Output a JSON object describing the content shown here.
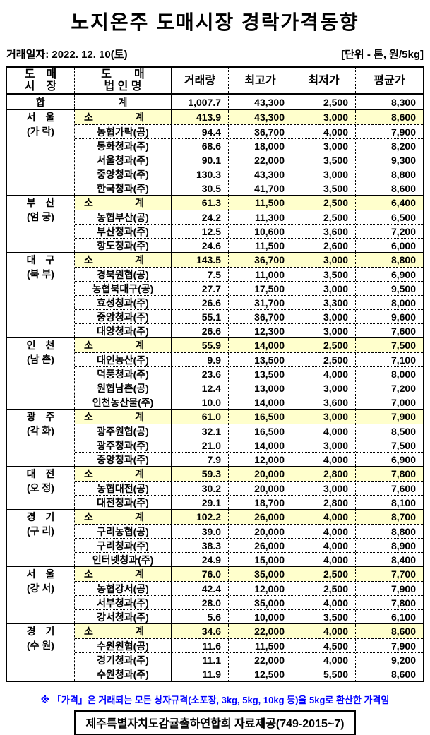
{
  "page": {
    "title": "노지온주 도매시장 경락가격동향",
    "date_label": "거래일자: 2022.  12. 10(토)",
    "unit_label": "[단위 - 톤, 원/5kg]",
    "footnote": "※ 「가격」은  거래되는 모든 상자규격(소포장, 3kg, 5kg, 10kg 등)을 5kg로 환산한 가격임",
    "source": "제주특별자치도감귤출하연합회 자료제공(749-2015~7)"
  },
  "colors": {
    "subtotal_row_bg": "#ffffcc",
    "footnote_text": "#0000ff",
    "body_text": "#000000"
  },
  "table": {
    "headers": {
      "market_l1": "도　매",
      "market_l2": "시　장",
      "corp_l1": "도　　매",
      "corp_l2": "법 인 명",
      "volume": "거래량",
      "high": "최고가",
      "low": "최저가",
      "avg": "평균가"
    },
    "total_row": {
      "market": "합",
      "corp": "계",
      "volume": "1,007.7",
      "high": "43,300",
      "low": "2,500",
      "avg": "8,300"
    },
    "subtotal_label_left": "소",
    "subtotal_label_right": "계",
    "groups": [
      {
        "market_l1": "서　울",
        "market_l2": "(가 락)",
        "rows": [
          {
            "subtotal": true,
            "volume": "413.9",
            "high": "43,300",
            "low": "3,000",
            "avg": "8,600"
          },
          {
            "corp": "농협가락(공)",
            "volume": "94.4",
            "high": "36,700",
            "low": "4,000",
            "avg": "7,900"
          },
          {
            "corp": "동화청과(주)",
            "volume": "68.6",
            "high": "18,000",
            "low": "3,000",
            "avg": "8,200"
          },
          {
            "corp": "서울청과(주)",
            "volume": "90.1",
            "high": "22,000",
            "low": "3,500",
            "avg": "9,300"
          },
          {
            "corp": "중앙청과(주)",
            "volume": "130.3",
            "high": "43,300",
            "low": "3,000",
            "avg": "8,800"
          },
          {
            "corp": "한국청과(주)",
            "volume": "30.5",
            "high": "41,700",
            "low": "3,500",
            "avg": "8,600"
          }
        ]
      },
      {
        "market_l1": "부　산",
        "market_l2": "(엄 궁)",
        "rows": [
          {
            "subtotal": true,
            "volume": "61.3",
            "high": "11,500",
            "low": "2,500",
            "avg": "6,400"
          },
          {
            "corp": "농협부산(공)",
            "volume": "24.2",
            "high": "11,300",
            "low": "2,500",
            "avg": "6,500"
          },
          {
            "corp": "부산청과(주)",
            "volume": "12.5",
            "high": "10,600",
            "low": "3,600",
            "avg": "7,200"
          },
          {
            "corp": "항도청과(주)",
            "volume": "24.6",
            "high": "11,500",
            "low": "2,600",
            "avg": "6,000"
          }
        ]
      },
      {
        "market_l1": "대　구",
        "market_l2": "(북 부)",
        "rows": [
          {
            "subtotal": true,
            "volume": "143.5",
            "high": "36,700",
            "low": "3,000",
            "avg": "8,800"
          },
          {
            "corp": "경북원협(공)",
            "volume": "7.5",
            "high": "11,000",
            "low": "3,500",
            "avg": "6,900"
          },
          {
            "corp": "농협북대구(공)",
            "volume": "27.7",
            "high": "17,500",
            "low": "3,000",
            "avg": "9,500"
          },
          {
            "corp": "효성청과(주)",
            "volume": "26.6",
            "high": "31,700",
            "low": "3,300",
            "avg": "8,000"
          },
          {
            "corp": "중앙청과(주)",
            "volume": "55.1",
            "high": "36,700",
            "low": "3,000",
            "avg": "9,600"
          },
          {
            "corp": "대양청과(주)",
            "volume": "26.6",
            "high": "12,300",
            "low": "3,000",
            "avg": "7,600"
          }
        ]
      },
      {
        "market_l1": "인　천",
        "market_l2": "(남 촌)",
        "rows": [
          {
            "subtotal": true,
            "volume": "55.9",
            "high": "14,000",
            "low": "2,500",
            "avg": "7,500"
          },
          {
            "corp": "대인농산(주)",
            "volume": "9.9",
            "high": "13,500",
            "low": "2,500",
            "avg": "7,100"
          },
          {
            "corp": "덕풍청과(주)",
            "volume": "23.6",
            "high": "13,500",
            "low": "4,000",
            "avg": "8,000"
          },
          {
            "corp": "원협남촌(공)",
            "volume": "12.4",
            "high": "13,000",
            "low": "3,000",
            "avg": "7,200"
          },
          {
            "corp": "인천농산물(주)",
            "volume": "10.0",
            "high": "14,000",
            "low": "3,600",
            "avg": "7,000"
          }
        ]
      },
      {
        "market_l1": "광　주",
        "market_l2": "(각 화)",
        "rows": [
          {
            "subtotal": true,
            "volume": "61.0",
            "high": "16,500",
            "low": "3,000",
            "avg": "7,900"
          },
          {
            "corp": "광주원협(공)",
            "volume": "32.1",
            "high": "16,500",
            "low": "4,000",
            "avg": "8,500"
          },
          {
            "corp": "광주청과(주)",
            "volume": "21.0",
            "high": "14,000",
            "low": "3,000",
            "avg": "7,500"
          },
          {
            "corp": "중앙청과(주)",
            "volume": "7.9",
            "high": "12,000",
            "low": "4,000",
            "avg": "6,900"
          }
        ]
      },
      {
        "market_l1": "대　전",
        "market_l2": "(오 정)",
        "rows": [
          {
            "subtotal": true,
            "volume": "59.3",
            "high": "20,000",
            "low": "2,800",
            "avg": "7,800"
          },
          {
            "corp": "농협대전(공)",
            "volume": "30.2",
            "high": "20,000",
            "low": "3,000",
            "avg": "7,600"
          },
          {
            "corp": "대전청과(주)",
            "volume": "29.1",
            "high": "18,700",
            "low": "2,800",
            "avg": "8,100"
          }
        ]
      },
      {
        "market_l1": "경　기",
        "market_l2": "(구 리)",
        "rows": [
          {
            "subtotal": true,
            "volume": "102.2",
            "high": "26,000",
            "low": "4,000",
            "avg": "8,700"
          },
          {
            "corp": "구리농협(공)",
            "volume": "39.0",
            "high": "20,000",
            "low": "4,000",
            "avg": "8,800"
          },
          {
            "corp": "구리청과(주)",
            "volume": "38.3",
            "high": "26,000",
            "low": "4,000",
            "avg": "8,900"
          },
          {
            "corp": "인터넷청과(주)",
            "volume": "24.9",
            "high": "15,000",
            "low": "4,000",
            "avg": "8,400"
          }
        ]
      },
      {
        "market_l1": "서　울",
        "market_l2": "(강 서)",
        "rows": [
          {
            "subtotal": true,
            "volume": "76.0",
            "high": "35,000",
            "low": "2,500",
            "avg": "7,700"
          },
          {
            "corp": "농협강서(공)",
            "volume": "42.4",
            "high": "12,000",
            "low": "2,500",
            "avg": "7,900"
          },
          {
            "corp": "서부청과(주)",
            "volume": "28.0",
            "high": "35,000",
            "low": "4,000",
            "avg": "7,800"
          },
          {
            "corp": "강서청과(주)",
            "volume": "5.6",
            "high": "10,000",
            "low": "3,500",
            "avg": "6,100"
          }
        ]
      },
      {
        "market_l1": "경　기",
        "market_l2": "(수 원)",
        "rows": [
          {
            "subtotal": true,
            "volume": "34.6",
            "high": "22,000",
            "low": "4,000",
            "avg": "8,600"
          },
          {
            "corp": "수원원협(공)",
            "volume": "11.6",
            "high": "11,500",
            "low": "4,500",
            "avg": "7,900"
          },
          {
            "corp": "경기청과(주)",
            "volume": "11.1",
            "high": "22,000",
            "low": "4,000",
            "avg": "9,200"
          },
          {
            "corp": "수원청과(주)",
            "volume": "11.9",
            "high": "12,500",
            "low": "5,500",
            "avg": "8,600"
          }
        ]
      }
    ]
  }
}
